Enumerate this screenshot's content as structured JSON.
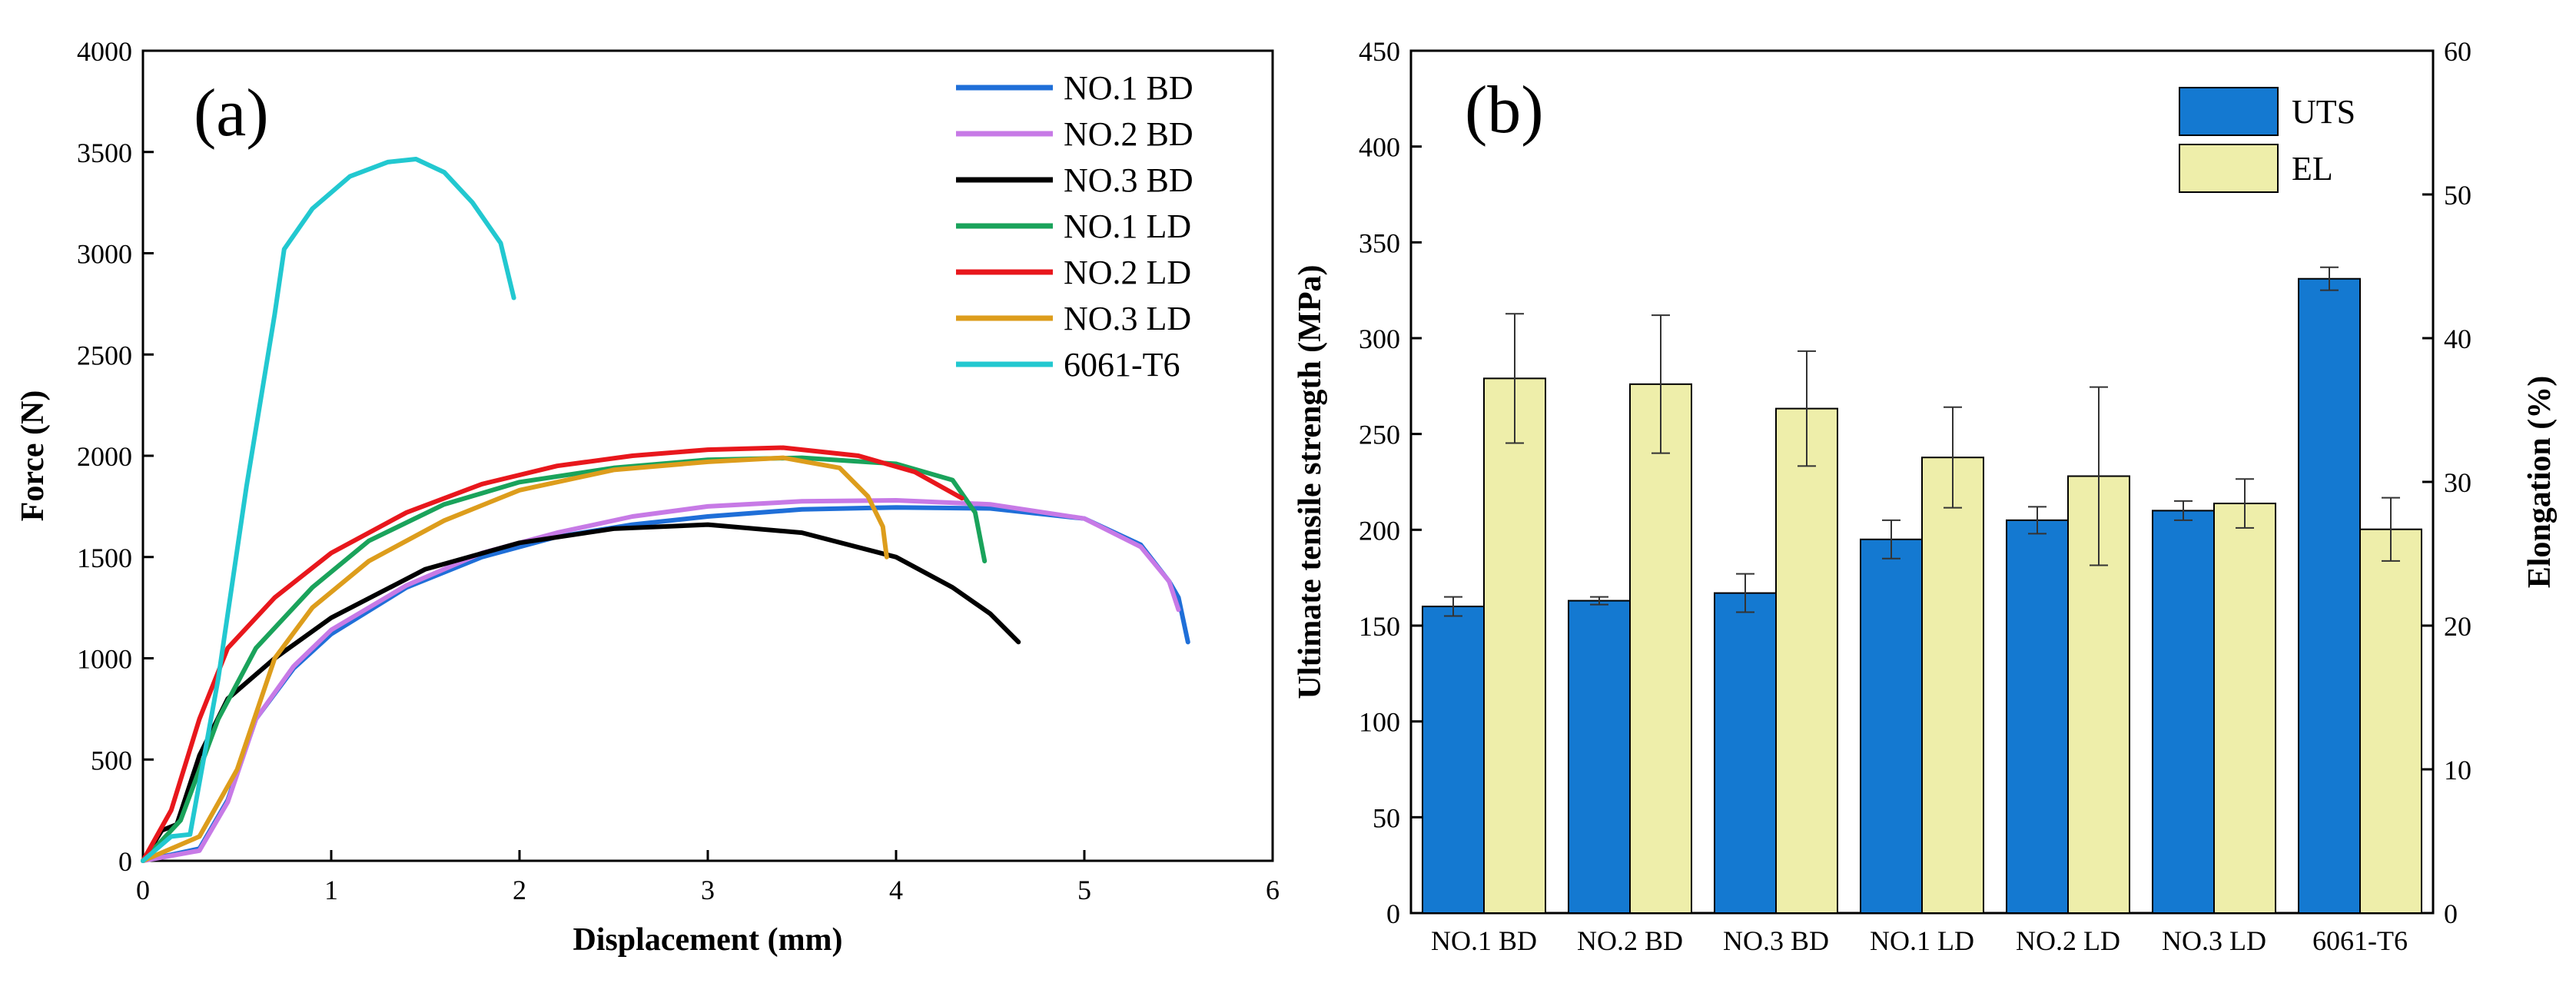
{
  "chart_data": [
    {
      "panel_label": "(a)",
      "type": "line",
      "xlabel": "Displacement (mm)",
      "ylabel": "Force (N)",
      "xlim": [
        0,
        6
      ],
      "ylim": [
        0,
        4000
      ],
      "x_ticks": [
        0,
        1,
        2,
        3,
        4,
        5,
        6
      ],
      "y_ticks": [
        0,
        500,
        1000,
        1500,
        2000,
        2500,
        3000,
        3500,
        4000
      ],
      "legend_position": "top-right",
      "series": [
        {
          "name": "NO.1 BD",
          "color": "#1f6fd8",
          "points": [
            [
              0,
              0
            ],
            [
              0.3,
              60
            ],
            [
              0.45,
              300
            ],
            [
              0.6,
              700
            ],
            [
              0.8,
              950
            ],
            [
              1.0,
              1120
            ],
            [
              1.4,
              1350
            ],
            [
              1.8,
              1500
            ],
            [
              2.2,
              1600
            ],
            [
              2.6,
              1660
            ],
            [
              3.0,
              1700
            ],
            [
              3.5,
              1735
            ],
            [
              4.0,
              1745
            ],
            [
              4.5,
              1740
            ],
            [
              5.0,
              1690
            ],
            [
              5.3,
              1560
            ],
            [
              5.45,
              1380
            ],
            [
              5.5,
              1300
            ],
            [
              5.55,
              1080
            ]
          ]
        },
        {
          "name": "NO.2 BD",
          "color": "#c77ae6",
          "points": [
            [
              0,
              0
            ],
            [
              0.3,
              50
            ],
            [
              0.45,
              290
            ],
            [
              0.6,
              700
            ],
            [
              0.8,
              960
            ],
            [
              1.0,
              1140
            ],
            [
              1.4,
              1360
            ],
            [
              1.8,
              1520
            ],
            [
              2.2,
              1620
            ],
            [
              2.6,
              1700
            ],
            [
              3.0,
              1750
            ],
            [
              3.5,
              1775
            ],
            [
              4.0,
              1780
            ],
            [
              4.5,
              1760
            ],
            [
              5.0,
              1690
            ],
            [
              5.3,
              1550
            ],
            [
              5.45,
              1380
            ],
            [
              5.5,
              1240
            ]
          ]
        },
        {
          "name": "NO.3 BD",
          "color": "#000000",
          "points": [
            [
              0,
              0
            ],
            [
              0.1,
              150
            ],
            [
              0.18,
              180
            ],
            [
              0.3,
              520
            ],
            [
              0.45,
              800
            ],
            [
              0.7,
              1000
            ],
            [
              1.0,
              1200
            ],
            [
              1.5,
              1440
            ],
            [
              2.0,
              1570
            ],
            [
              2.5,
              1640
            ],
            [
              3.0,
              1660
            ],
            [
              3.5,
              1620
            ],
            [
              4.0,
              1500
            ],
            [
              4.3,
              1350
            ],
            [
              4.5,
              1220
            ],
            [
              4.65,
              1080
            ]
          ]
        },
        {
          "name": "NO.1 LD",
          "color": "#1aa35b",
          "points": [
            [
              0,
              0
            ],
            [
              0.2,
              200
            ],
            [
              0.4,
              700
            ],
            [
              0.6,
              1050
            ],
            [
              0.9,
              1350
            ],
            [
              1.2,
              1580
            ],
            [
              1.6,
              1760
            ],
            [
              2.0,
              1870
            ],
            [
              2.5,
              1940
            ],
            [
              3.0,
              1980
            ],
            [
              3.5,
              1990
            ],
            [
              4.0,
              1960
            ],
            [
              4.3,
              1880
            ],
            [
              4.42,
              1720
            ],
            [
              4.47,
              1480
            ]
          ]
        },
        {
          "name": "NO.2 LD",
          "color": "#e8171c",
          "points": [
            [
              0,
              0
            ],
            [
              0.15,
              250
            ],
            [
              0.3,
              700
            ],
            [
              0.45,
              1050
            ],
            [
              0.7,
              1300
            ],
            [
              1.0,
              1520
            ],
            [
              1.4,
              1720
            ],
            [
              1.8,
              1860
            ],
            [
              2.2,
              1950
            ],
            [
              2.6,
              2000
            ],
            [
              3.0,
              2030
            ],
            [
              3.4,
              2040
            ],
            [
              3.8,
              2000
            ],
            [
              4.1,
              1920
            ],
            [
              4.35,
              1790
            ]
          ]
        },
        {
          "name": "NO.3 LD",
          "color": "#dd9d1c",
          "points": [
            [
              0,
              0
            ],
            [
              0.3,
              120
            ],
            [
              0.5,
              450
            ],
            [
              0.7,
              1000
            ],
            [
              0.9,
              1250
            ],
            [
              1.2,
              1480
            ],
            [
              1.6,
              1680
            ],
            [
              2.0,
              1830
            ],
            [
              2.5,
              1930
            ],
            [
              3.0,
              1970
            ],
            [
              3.4,
              1990
            ],
            [
              3.7,
              1940
            ],
            [
              3.85,
              1800
            ],
            [
              3.93,
              1650
            ],
            [
              3.95,
              1500
            ]
          ]
        },
        {
          "name": "6061-T6",
          "color": "#22c8d0",
          "points": [
            [
              0,
              0
            ],
            [
              0.15,
              120
            ],
            [
              0.25,
              130
            ],
            [
              0.4,
              900
            ],
            [
              0.55,
              1850
            ],
            [
              0.7,
              2700
            ],
            [
              0.75,
              3020
            ],
            [
              0.9,
              3220
            ],
            [
              1.1,
              3380
            ],
            [
              1.3,
              3450
            ],
            [
              1.45,
              3465
            ],
            [
              1.6,
              3400
            ],
            [
              1.75,
              3250
            ],
            [
              1.9,
              3050
            ],
            [
              1.97,
              2780
            ]
          ]
        }
      ]
    },
    {
      "panel_label": "(b)",
      "type": "bar",
      "categories": [
        "NO.1 BD",
        "NO.2 BD",
        "NO.3 BD",
        "NO.1 LD",
        "NO.2 LD",
        "NO.3 LD",
        "6061-T6"
      ],
      "ylabel": "Ultimate tensile strength (MPa)",
      "y2label": "Elongation (%)",
      "ylim": [
        0,
        450
      ],
      "y2lim": [
        0,
        60
      ],
      "y_ticks": [
        0,
        50,
        100,
        150,
        200,
        250,
        300,
        350,
        400,
        450
      ],
      "y2_ticks": [
        0,
        10,
        20,
        30,
        40,
        50,
        60
      ],
      "legend_position": "top-right",
      "series": [
        {
          "name": "UTS",
          "axis": "left",
          "color": "#1479d1",
          "values": [
            160,
            163,
            167,
            195,
            205,
            210,
            331
          ],
          "errors": [
            5,
            2,
            10,
            10,
            7,
            5,
            6
          ]
        },
        {
          "name": "EL",
          "axis": "right",
          "color": "#eeeeaa",
          "values": [
            37.2,
            36.8,
            35.1,
            31.7,
            30.4,
            28.5,
            26.7
          ],
          "errors": [
            4.5,
            4.8,
            4.0,
            3.5,
            6.2,
            1.7,
            2.2
          ]
        }
      ]
    }
  ]
}
